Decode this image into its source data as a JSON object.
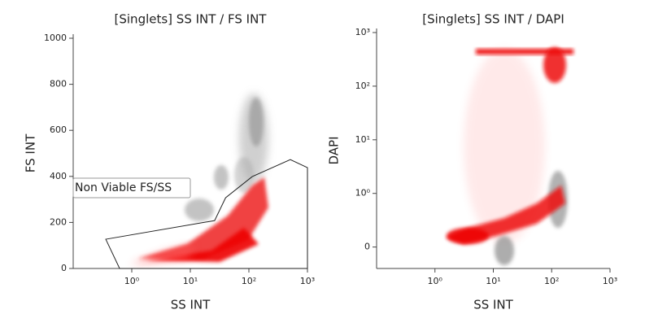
{
  "chart_data": [
    {
      "type": "scatter",
      "title": "[Singlets] SS INT / FS INT",
      "x_label": "SS INT",
      "y_label": "FS INT",
      "xscale": "log",
      "xlim": [
        0.1,
        1000
      ],
      "xticks": [
        {
          "value": 1,
          "label": "10⁰"
        },
        {
          "value": 10,
          "label": "10¹"
        },
        {
          "value": 100,
          "label": "10²"
        },
        {
          "value": 1000,
          "label": "10³"
        }
      ],
      "yscale": "linear",
      "ylim": [
        0,
        1000
      ],
      "yticks": [
        0,
        200,
        400,
        600,
        800,
        1000
      ],
      "gate": {
        "label": "Non Viable FS/SS",
        "x": [
          0.36,
          26,
          40,
          114,
          510,
          1000,
          1000,
          0.62
        ],
        "y": [
          127,
          208,
          307,
          399,
          473,
          438,
          0,
          0
        ]
      }
    },
    {
      "type": "scatter",
      "title": "[Singlets] SS INT / DAPI",
      "x_label": "SS INT",
      "y_label": "DAPI",
      "xscale": "log",
      "xlim": [
        0.1,
        1000
      ],
      "xticks": [
        {
          "value": 1,
          "label": "10⁰"
        },
        {
          "value": 10,
          "label": "10¹"
        },
        {
          "value": 100,
          "label": "10²"
        },
        {
          "value": 1000,
          "label": "10³"
        }
      ],
      "yscale": "biexponential",
      "ylim": [
        -0.4,
        1000
      ],
      "yticks": [
        0,
        {
          "value": 1,
          "label": "10⁰"
        },
        {
          "value": 10,
          "label": "10¹"
        },
        {
          "value": 100,
          "label": "10²"
        },
        {
          "value": 1000,
          "label": "10³"
        }
      ]
    }
  ]
}
